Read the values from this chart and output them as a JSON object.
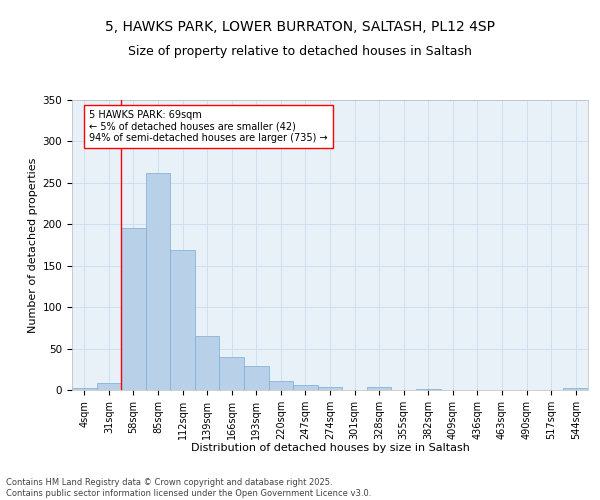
{
  "title_line1": "5, HAWKS PARK, LOWER BURRATON, SALTASH, PL12 4SP",
  "title_line2": "Size of property relative to detached houses in Saltash",
  "xlabel": "Distribution of detached houses by size in Saltash",
  "ylabel": "Number of detached properties",
  "categories": [
    "4sqm",
    "31sqm",
    "58sqm",
    "85sqm",
    "112sqm",
    "139sqm",
    "166sqm",
    "193sqm",
    "220sqm",
    "247sqm",
    "274sqm",
    "301sqm",
    "328sqm",
    "355sqm",
    "382sqm",
    "409sqm",
    "436sqm",
    "463sqm",
    "490sqm",
    "517sqm",
    "544sqm"
  ],
  "values": [
    2,
    9,
    196,
    262,
    169,
    65,
    40,
    29,
    11,
    6,
    4,
    0,
    4,
    0,
    1,
    0,
    0,
    0,
    0,
    0,
    2
  ],
  "bar_color": "#b8d0e8",
  "bar_edge_color": "#7aadd4",
  "grid_color": "#c8ddf0",
  "background_color": "#e8f0f8",
  "marker_label": "5 HAWKS PARK: 69sqm\n← 5% of detached houses are smaller (42)\n94% of semi-detached houses are larger (735) →",
  "ylim": [
    0,
    350
  ],
  "yticks": [
    0,
    50,
    100,
    150,
    200,
    250,
    300,
    350
  ],
  "footer_line1": "Contains HM Land Registry data © Crown copyright and database right 2025.",
  "footer_line2": "Contains public sector information licensed under the Open Government Licence v3.0.",
  "title_fontsize": 10,
  "subtitle_fontsize": 9,
  "axis_label_fontsize": 8,
  "tick_fontsize": 7,
  "annotation_fontsize": 7,
  "footer_fontsize": 6
}
